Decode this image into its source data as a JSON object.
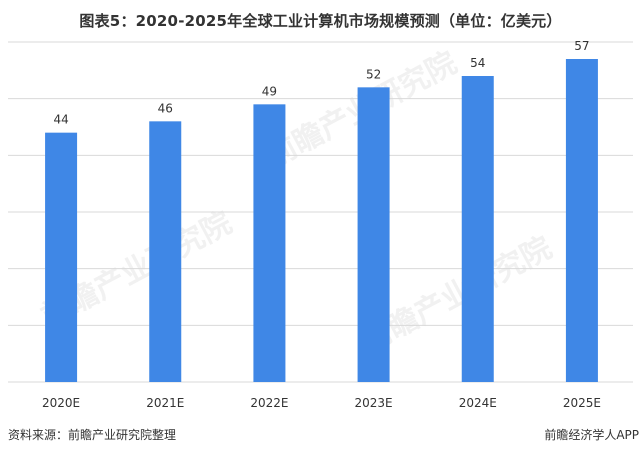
{
  "title": "图表5：2020-2025年全球工业计算机市场规模预测（单位：亿美元）",
  "source": "资料来源：前瞻产业研究院整理",
  "brand": "前瞻经济学人APP",
  "watermark": "前瞻产业研究院",
  "colors": {
    "bar": "#3f87e6",
    "grid": "#d9d9d9",
    "text": "#333333"
  },
  "chart_data": {
    "type": "bar",
    "title": "图表5：2020-2025年全球工业计算机市场规模预测（单位：亿美元）",
    "categories": [
      "2020E",
      "2021E",
      "2022E",
      "2023E",
      "2024E",
      "2025E"
    ],
    "series": [
      {
        "values": [
          44,
          46,
          49,
          52,
          54,
          57
        ]
      }
    ],
    "ylim": [
      0,
      60
    ],
    "ytick_step": 10,
    "grid": true,
    "legend": "none",
    "xlabel": "",
    "ylabel": ""
  }
}
